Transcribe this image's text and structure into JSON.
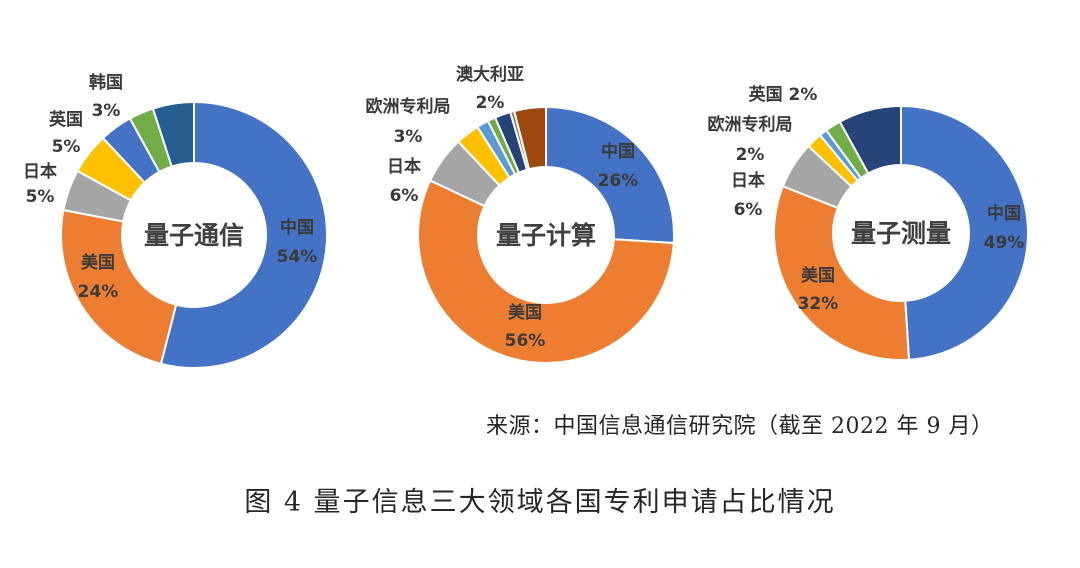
{
  "chart_data": [
    {
      "type": "pie",
      "center_label": "量子通信",
      "series": [
        {
          "name": "中国",
          "value": 54,
          "label": "54%",
          "color": "#4472c4"
        },
        {
          "name": "美国",
          "value": 24,
          "label": "24%",
          "color": "#ed7d31"
        },
        {
          "name": "日本",
          "value": 5,
          "label": "5%",
          "color": "#a5a5a5"
        },
        {
          "name": "英国",
          "value": 5,
          "label": "5%",
          "color": "#ffc000"
        },
        {
          "name": "",
          "value": 4,
          "label": "",
          "color": "#4472c4"
        },
        {
          "name": "韩国",
          "value": 3,
          "label": "3%",
          "color": "#70ad47"
        },
        {
          "name": "",
          "value": 5,
          "label": "",
          "color": "#255e91"
        }
      ]
    },
    {
      "type": "pie",
      "center_label": "量子计算",
      "series": [
        {
          "name": "中国",
          "value": 26,
          "label": "26%",
          "color": "#4472c4"
        },
        {
          "name": "美国",
          "value": 56,
          "label": "56%",
          "color": "#ed7d31"
        },
        {
          "name": "日本",
          "value": 6,
          "label": "6%",
          "color": "#a5a5a5"
        },
        {
          "name": "欧洲专利局",
          "value": 3,
          "label": "3%",
          "color": "#ffc000"
        },
        {
          "name": "",
          "value": 1.5,
          "label": "",
          "color": "#5b9bd5"
        },
        {
          "name": "",
          "value": 1,
          "label": "",
          "color": "#70ad47"
        },
        {
          "name": "澳大利亚",
          "value": 2,
          "label": "2%",
          "color": "#264478"
        },
        {
          "name": "",
          "value": 0.5,
          "label": "",
          "color": "#7f7f7f"
        },
        {
          "name": "",
          "value": 4,
          "label": "",
          "color": "#9e480e"
        }
      ]
    },
    {
      "type": "pie",
      "center_label": "量子测量",
      "series": [
        {
          "name": "中国",
          "value": 49,
          "label": "49%",
          "color": "#4472c4"
        },
        {
          "name": "美国",
          "value": 32,
          "label": "32%",
          "color": "#ed7d31"
        },
        {
          "name": "日本",
          "value": 6,
          "label": "6%",
          "color": "#a5a5a5"
        },
        {
          "name": "欧洲专利局",
          "value": 2,
          "label": "2%",
          "color": "#ffc000"
        },
        {
          "name": "",
          "value": 1,
          "label": "",
          "color": "#5b9bd5"
        },
        {
          "name": "英国",
          "value": 2,
          "label": "2%",
          "color": "#70ad47"
        },
        {
          "name": "",
          "value": 8,
          "label": "",
          "color": "#264478"
        }
      ]
    }
  ],
  "source_text": "来源：中国信息通信研究院（截至 2022 年 9 月）",
  "figure_caption": "图 4 量子信息三大领域各国专利申请占比情况"
}
